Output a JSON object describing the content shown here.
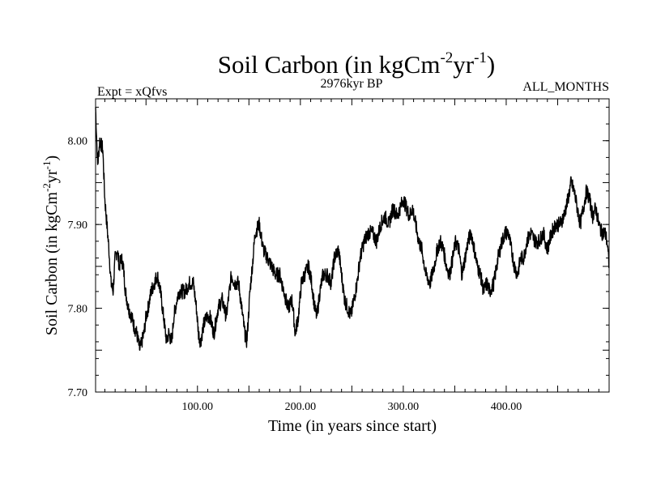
{
  "chart_data": {
    "type": "line",
    "title": "Soil Carbon (in kgCm",
    "title_sup1": "-2",
    "title_mid": "yr",
    "title_sup2": "-1",
    "title_end": ")",
    "subtitle_left": "Expt = xQfvs",
    "subtitle_center": "2976kyr BP",
    "subtitle_right": "ALL_MONTHS",
    "xlabel": "Time (in years since start)",
    "ylabel_main": "Soil Carbon (in kgCm",
    "ylabel_sup1": "-2",
    "ylabel_mid": "yr",
    "ylabel_sup2": "-1",
    "ylabel_end": ")",
    "xlim": [
      1,
      500
    ],
    "ylim": [
      7.7,
      8.05
    ],
    "xticks": [
      {
        "value": 100,
        "label": "100.00"
      },
      {
        "value": 200,
        "label": "200.00"
      },
      {
        "value": 300,
        "label": "300.00"
      },
      {
        "value": 400,
        "label": "400.00"
      }
    ],
    "yticks": [
      {
        "value": 7.7,
        "label": "7.70"
      },
      {
        "value": 7.8,
        "label": "7.80"
      },
      {
        "value": 7.9,
        "label": "7.90"
      },
      {
        "value": 8.0,
        "label": "8.00"
      }
    ],
    "series": [
      {
        "name": "Soil Carbon",
        "color": "#000000",
        "x": [
          1,
          3,
          5,
          8,
          10,
          14,
          16,
          18,
          20,
          22,
          24,
          26,
          28,
          30,
          33,
          36,
          38,
          41,
          44,
          46,
          48,
          50,
          52,
          55,
          58,
          61,
          64,
          66,
          68,
          70,
          72,
          75,
          77,
          80,
          82,
          85,
          88,
          92,
          96,
          99,
          101,
          103,
          106,
          109,
          112,
          116,
          120,
          124,
          128,
          131,
          133,
          136,
          140,
          143,
          146,
          148,
          151,
          154,
          156,
          160,
          164,
          168,
          172,
          176,
          180,
          184,
          188,
          192,
          195,
          198,
          201,
          204,
          208,
          211,
          214,
          216,
          219,
          222,
          226,
          230,
          233,
          237,
          240,
          243,
          246,
          249,
          252,
          255,
          258,
          262,
          266,
          270,
          274,
          278,
          282,
          286,
          290,
          294,
          297,
          300,
          303,
          306,
          309,
          312,
          315,
          318,
          322,
          326,
          330,
          333,
          336,
          339,
          342,
          345,
          348,
          351,
          354,
          357,
          360,
          363,
          366,
          369,
          372,
          375,
          378,
          381,
          384,
          388,
          392,
          396,
          399,
          402,
          405,
          408,
          411,
          414,
          417,
          420,
          424,
          428,
          432,
          436,
          440,
          444,
          448,
          452,
          456,
          460,
          463,
          466,
          469,
          472,
          475,
          478,
          481,
          484,
          487,
          490,
          493,
          496,
          498,
          500
        ],
        "values": [
          8.04,
          7.97,
          8.0,
          7.99,
          7.93,
          7.87,
          7.83,
          7.82,
          7.86,
          7.87,
          7.85,
          7.86,
          7.85,
          7.82,
          7.8,
          7.79,
          7.78,
          7.77,
          7.75,
          7.76,
          7.77,
          7.79,
          7.8,
          7.82,
          7.83,
          7.84,
          7.82,
          7.8,
          7.78,
          7.76,
          7.77,
          7.76,
          7.79,
          7.81,
          7.82,
          7.82,
          7.82,
          7.83,
          7.83,
          7.8,
          7.77,
          7.76,
          7.78,
          7.79,
          7.79,
          7.77,
          7.8,
          7.81,
          7.79,
          7.82,
          7.84,
          7.83,
          7.83,
          7.8,
          7.77,
          7.76,
          7.82,
          7.86,
          7.89,
          7.9,
          7.87,
          7.86,
          7.85,
          7.84,
          7.84,
          7.82,
          7.8,
          7.81,
          7.77,
          7.79,
          7.83,
          7.84,
          7.85,
          7.83,
          7.8,
          7.79,
          7.82,
          7.84,
          7.84,
          7.83,
          7.86,
          7.87,
          7.84,
          7.81,
          7.8,
          7.79,
          7.81,
          7.83,
          7.86,
          7.88,
          7.89,
          7.89,
          7.88,
          7.9,
          7.91,
          7.9,
          7.92,
          7.91,
          7.92,
          7.93,
          7.92,
          7.91,
          7.92,
          7.9,
          7.88,
          7.87,
          7.84,
          7.83,
          7.85,
          7.87,
          7.88,
          7.87,
          7.85,
          7.84,
          7.86,
          7.88,
          7.87,
          7.84,
          7.86,
          7.88,
          7.89,
          7.87,
          7.85,
          7.84,
          7.82,
          7.83,
          7.82,
          7.83,
          7.86,
          7.88,
          7.89,
          7.89,
          7.87,
          7.85,
          7.84,
          7.86,
          7.86,
          7.88,
          7.89,
          7.88,
          7.88,
          7.89,
          7.87,
          7.89,
          7.9,
          7.9,
          7.91,
          7.93,
          7.95,
          7.94,
          7.92,
          7.9,
          7.92,
          7.94,
          7.93,
          7.91,
          7.92,
          7.9,
          7.89,
          7.89,
          7.88,
          7.85
        ]
      }
    ]
  }
}
